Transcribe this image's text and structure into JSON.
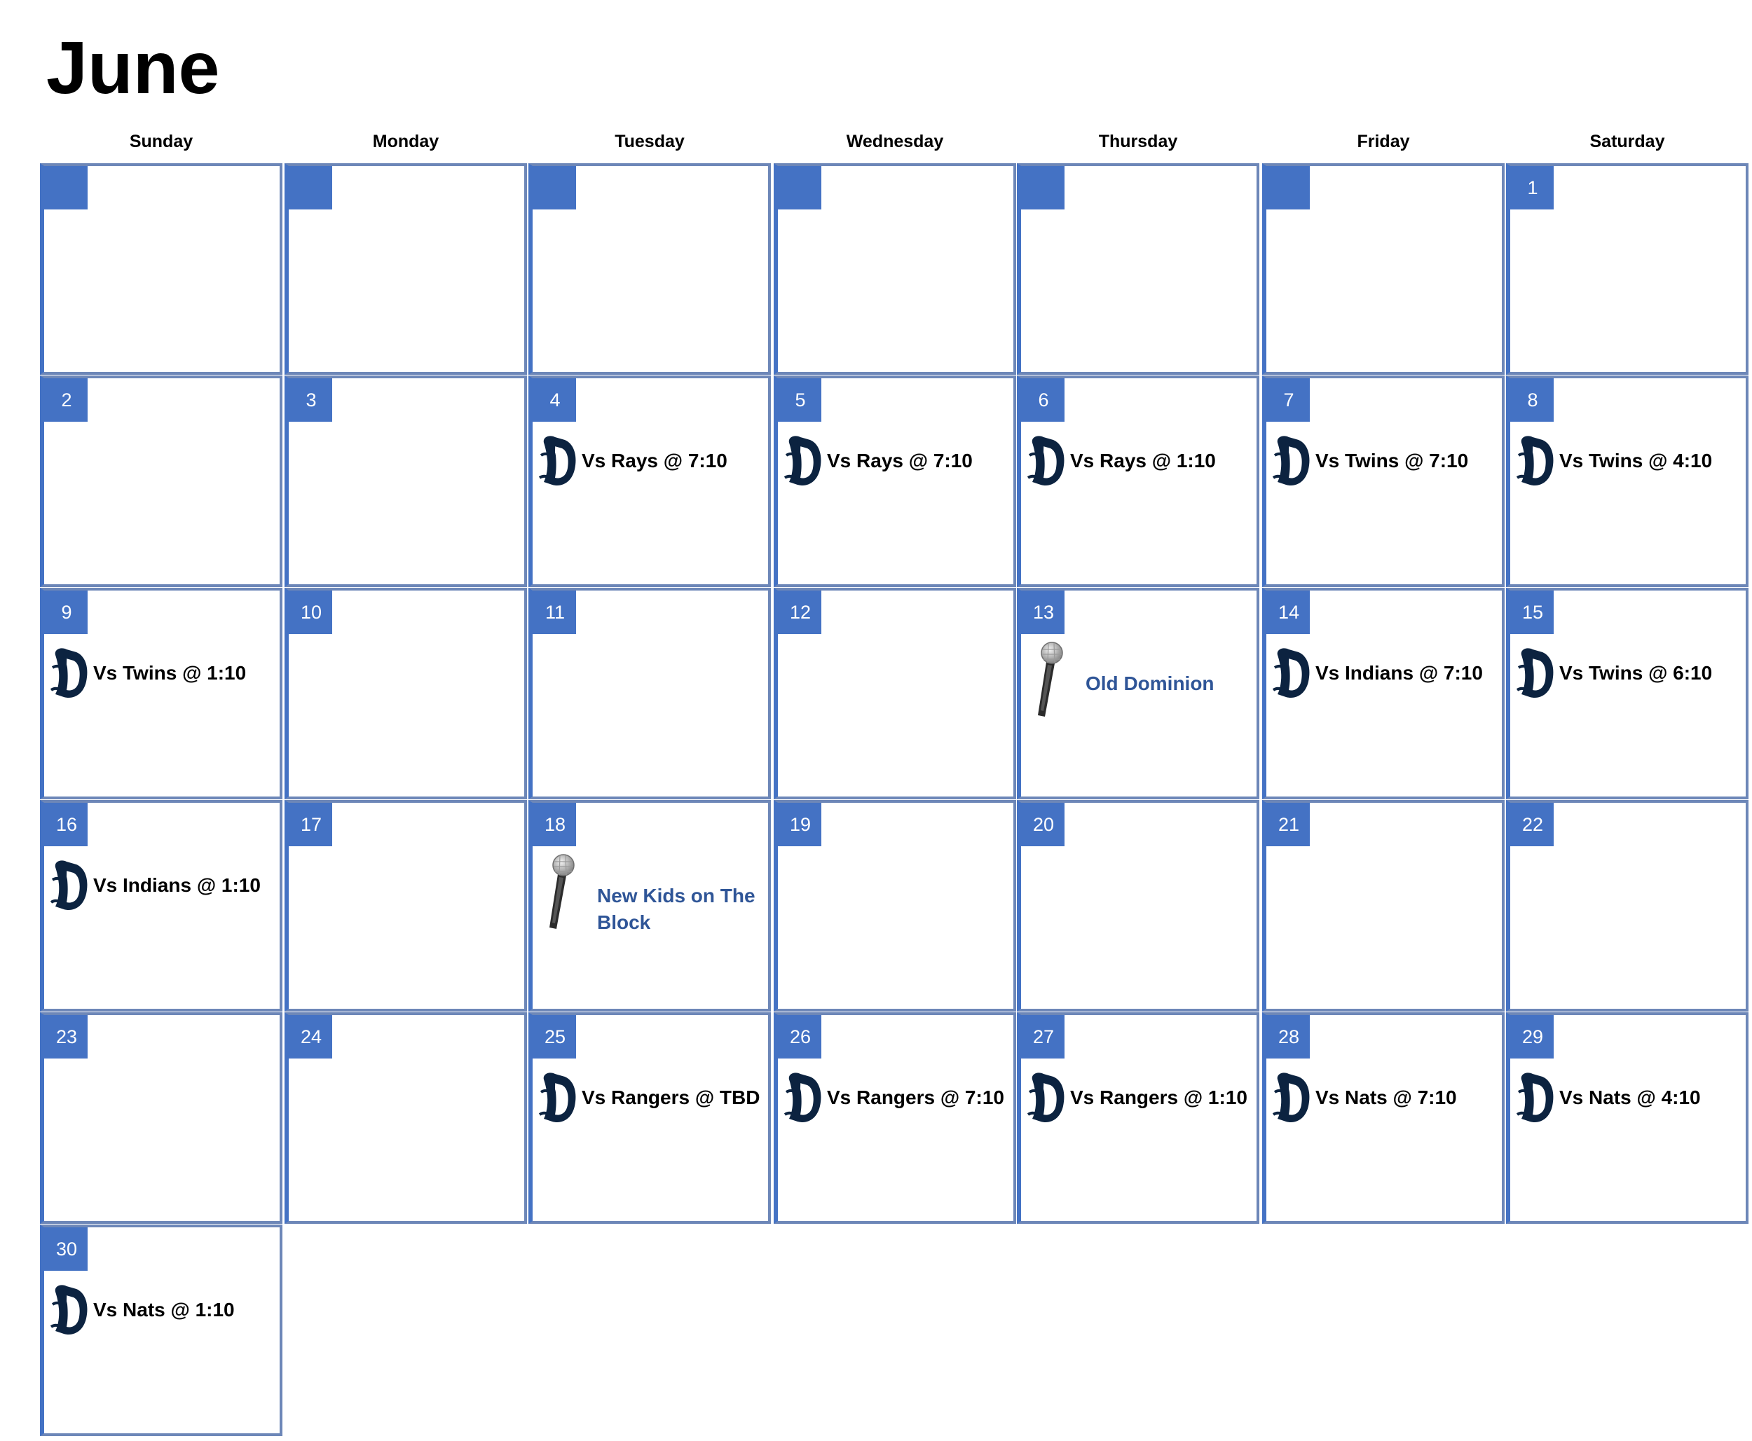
{
  "month": "June",
  "weekdays": [
    "Sunday",
    "Monday",
    "Tuesday",
    "Wednesday",
    "Thursday",
    "Friday",
    "Saturday"
  ],
  "icons": {
    "game": "detroit-tigers-d-logo-icon",
    "concert": "microphone-icon"
  },
  "colors": {
    "accent": "#4472c4",
    "grid": "#6d87b8",
    "logo": "#0c2340",
    "concert_text": "#2f5597"
  },
  "weeks": [
    [
      {
        "day": ""
      },
      {
        "day": ""
      },
      {
        "day": ""
      },
      {
        "day": ""
      },
      {
        "day": ""
      },
      {
        "day": ""
      },
      {
        "day": "1"
      }
    ],
    [
      {
        "day": "2"
      },
      {
        "day": "3"
      },
      {
        "day": "4",
        "event": {
          "type": "game",
          "text": "Vs Rays @ 7:10"
        }
      },
      {
        "day": "5",
        "event": {
          "type": "game",
          "text": "Vs Rays @ 7:10"
        }
      },
      {
        "day": "6",
        "event": {
          "type": "game",
          "text": "Vs Rays @ 1:10"
        }
      },
      {
        "day": "7",
        "event": {
          "type": "game",
          "text": "Vs Twins @ 7:10"
        }
      },
      {
        "day": "8",
        "event": {
          "type": "game",
          "text": "Vs Twins @ 4:10"
        }
      }
    ],
    [
      {
        "day": "9",
        "event": {
          "type": "game",
          "text": "Vs Twins @ 1:10"
        }
      },
      {
        "day": "10"
      },
      {
        "day": "11"
      },
      {
        "day": "12"
      },
      {
        "day": "13",
        "event": {
          "type": "concert",
          "text": "Old Dominion"
        }
      },
      {
        "day": "14",
        "event": {
          "type": "game",
          "text": "Vs Indians @ 7:10"
        }
      },
      {
        "day": "15",
        "event": {
          "type": "game",
          "text": "Vs Twins @ 6:10"
        }
      }
    ],
    [
      {
        "day": "16",
        "event": {
          "type": "game",
          "text": "Vs Indians @ 1:10"
        }
      },
      {
        "day": "17"
      },
      {
        "day": "18",
        "event": {
          "type": "concert",
          "text": "New Kids on The Block"
        }
      },
      {
        "day": "19"
      },
      {
        "day": "20"
      },
      {
        "day": "21"
      },
      {
        "day": "22"
      }
    ],
    [
      {
        "day": "23"
      },
      {
        "day": "24"
      },
      {
        "day": "25",
        "event": {
          "type": "game",
          "text": "Vs Rangers @ TBD"
        }
      },
      {
        "day": "26",
        "event": {
          "type": "game",
          "text": "Vs Rangers @ 7:10"
        }
      },
      {
        "day": "27",
        "event": {
          "type": "game",
          "text": "Vs Rangers @ 1:10"
        }
      },
      {
        "day": "28",
        "event": {
          "type": "game",
          "text": "Vs Nats @ 7:10"
        }
      },
      {
        "day": "29",
        "event": {
          "type": "game",
          "text": "Vs Nats @ 4:10"
        }
      }
    ],
    [
      {
        "day": "30",
        "event": {
          "type": "game",
          "text": "Vs Nats @ 1:10"
        }
      }
    ]
  ]
}
